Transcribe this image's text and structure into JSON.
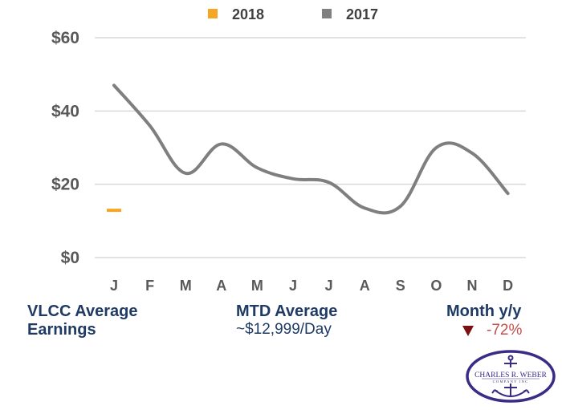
{
  "chart_data": {
    "type": "line",
    "categories": [
      "J",
      "F",
      "M",
      "A",
      "M",
      "J",
      "J",
      "A",
      "S",
      "O",
      "N",
      "D"
    ],
    "series": [
      {
        "name": "2018",
        "color": "#f5a623",
        "values": [
          12.9,
          null,
          null,
          null,
          null,
          null,
          null,
          null,
          null,
          null,
          null,
          null
        ]
      },
      {
        "name": "2017",
        "color": "#7f7f7f",
        "values": [
          47,
          36,
          23,
          31,
          24.5,
          21.5,
          20.5,
          13.5,
          14,
          30,
          28.5,
          17.5
        ]
      }
    ],
    "y_ticks": [
      "$0",
      "$20",
      "$40",
      "$60"
    ],
    "y_tick_values": [
      0,
      20,
      40,
      60
    ],
    "ylim": [
      0,
      60
    ],
    "grid": true,
    "legend_position": "top-center"
  },
  "legend": {
    "items": [
      {
        "label": "2018",
        "color": "#f5a623"
      },
      {
        "label": "2017",
        "color": "#808080"
      }
    ]
  },
  "footer": {
    "left_title_line1": "VLCC Average",
    "left_title_line2": "Earnings",
    "mid_title": "MTD Average",
    "mid_value": "~$12,999/Day",
    "right_title": "Month y/y",
    "right_value": "-72%",
    "right_trend_color": "#7a1010"
  },
  "logo": {
    "line1": "CHARLES R. WEBER",
    "line2": "COMPANY INC",
    "icon": "anchor-icon",
    "color": "#3b2a86"
  }
}
